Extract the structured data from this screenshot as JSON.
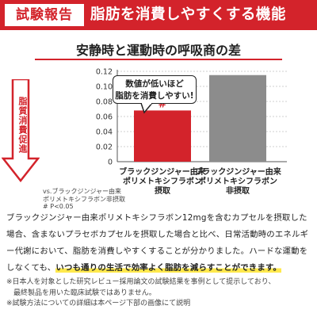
{
  "banner": {
    "badge": "試験報告",
    "headline": "脂肪を消費しやすくする機能"
  },
  "indicator": {
    "label": "脂質消費促進"
  },
  "stat_note": {
    "line1": "vs.ブラックジンジャー由来",
    "line2": "ポリメトキシフラボン非摂取",
    "line3": "# P<0.05"
  },
  "callout": {
    "line1": "数値が低いほど",
    "line2": "脂肪を消費しやすい!"
  },
  "paragraph": {
    "part1": "ブラックジンジャー由来ポリメトキシフラボン12mgを含むカプセルを摂取した場合、含まないプラセボカプセルを摂取した場合と比べ、日常活動時のエネルギー代謝において、脂肪を消費しやすくすることが分かりました。ハードな運動をしなくても、",
    "highlight": "いつも通りの生活で効率よく脂肪を減らすことができます。"
  },
  "notes": {
    "line1": "※日本人を対象とした研究レビュー採用論文の試験結果を事例として提示しており、",
    "line2": "　最終製品を用いた臨床試験ではありません。",
    "line3": "※試験方法についての詳細は本ページ下部の画像にて説明"
  },
  "colors": {
    "accent": "#d3232b",
    "gray_bar": "#8c8c8c",
    "highlight": "#ffe94d"
  },
  "chart_data": {
    "type": "bar",
    "title": "安静時と運動時の呼吸商の差",
    "categories": [
      [
        "ブラックジンジャー由来",
        "ポリメトキシフラボン",
        "摂取"
      ],
      [
        "ブラックジンジャー由来",
        "ポリメトキシフラボン",
        "非摂取"
      ]
    ],
    "values": [
      0.068,
      0.115
    ],
    "bar_colors": [
      "#d3232b",
      "#8c8c8c"
    ],
    "mark_labels": [
      "#",
      ""
    ],
    "yticks": [
      "0.12",
      "0.10",
      "0.08",
      "0.06",
      "0.04",
      "0.02",
      "0"
    ],
    "ylim": [
      0,
      0.12
    ],
    "grid": true
  }
}
